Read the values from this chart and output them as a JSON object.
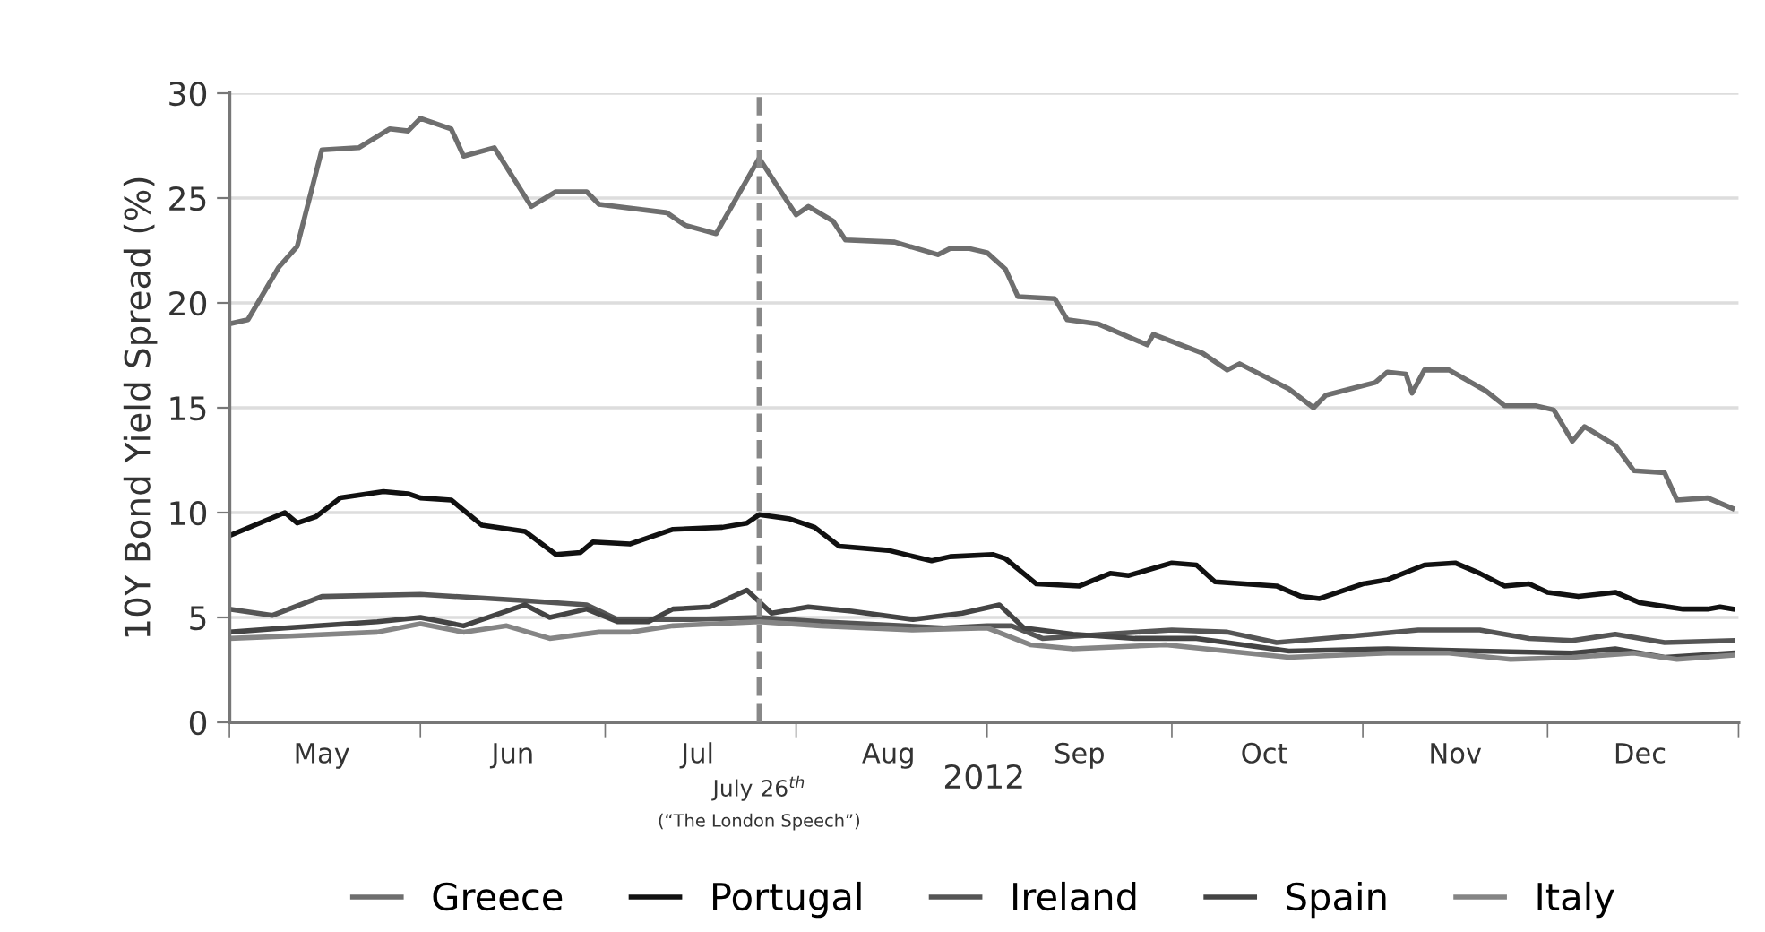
{
  "chart_data": {
    "type": "line",
    "ylabel": "10Y Bond Yield Spread (%)",
    "xlabel": "2012",
    "xlim": [
      "2012-05-01",
      "2013-01-01"
    ],
    "xticks": [
      {
        "value": "2012-05-01",
        "label": null
      },
      {
        "value": "2012-06-01",
        "label": null
      },
      {
        "value": "2012-07-01",
        "label": null
      },
      {
        "value": "2012-08-01",
        "label": null
      },
      {
        "value": "2012-09-01",
        "label": null
      },
      {
        "value": "2012-10-01",
        "label": null
      },
      {
        "value": "2012-11-01",
        "label": null
      },
      {
        "value": "2012-12-01",
        "label": null
      },
      {
        "value": "2013-01-01",
        "label": null
      },
      {
        "value": "2012-05-16",
        "label": "May"
      },
      {
        "value": "2012-06-16",
        "label": "Jun"
      },
      {
        "value": "2012-07-16",
        "label": "Jul"
      },
      {
        "value": "2012-08-16",
        "label": "Aug"
      },
      {
        "value": "2012-09-16",
        "label": "Sep"
      },
      {
        "value": "2012-10-16",
        "label": "Oct"
      },
      {
        "value": "2012-11-16",
        "label": "Nov"
      },
      {
        "value": "2012-12-16",
        "label": "Dec"
      }
    ],
    "ylim": [
      0,
      30
    ],
    "yticks": [
      0,
      5,
      10,
      15,
      20,
      25,
      30
    ],
    "grid": "y",
    "legend": "bottom",
    "line_style": "solid",
    "ref_lines": [
      {
        "axis": "x",
        "value": "2012-07-26",
        "label": "July 26$^{th}$",
        "color": "#888888",
        "line_style": "dashed"
      }
    ],
    "annotations": [
      "(“The London Speech”)"
    ],
    "series": [
      {
        "name": "Greece",
        "color": "#6e6e6e",
        "x": [
          "2012-05-01",
          "2012-05-04",
          "2012-05-09",
          "2012-05-12",
          "2012-05-16",
          "2012-05-22",
          "2012-05-27",
          "2012-05-30",
          "2012-06-01",
          "2012-06-06",
          "2012-06-08",
          "2012-06-13",
          "2012-06-19",
          "2012-06-23",
          "2012-06-28",
          "2012-06-30",
          "2012-07-11",
          "2012-07-14",
          "2012-07-19",
          "2012-07-26",
          "2012-07-30",
          "2012-08-01",
          "2012-08-03",
          "2012-08-07",
          "2012-08-09",
          "2012-08-17",
          "2012-08-24",
          "2012-08-26",
          "2012-08-29",
          "2012-09-01",
          "2012-09-04",
          "2012-09-06",
          "2012-09-12",
          "2012-09-14",
          "2012-09-19",
          "2012-09-27",
          "2012-09-28",
          "2012-10-06",
          "2012-10-10",
          "2012-10-12",
          "2012-10-20",
          "2012-10-24",
          "2012-10-26",
          "2012-11-03",
          "2012-11-05",
          "2012-11-08",
          "2012-11-09",
          "2012-11-11",
          "2012-11-15",
          "2012-11-21",
          "2012-11-24",
          "2012-11-29",
          "2012-12-02",
          "2012-12-05",
          "2012-12-07",
          "2012-12-12",
          "2012-12-15",
          "2012-12-20",
          "2012-12-22",
          "2012-12-27",
          "2012-12-31"
        ],
        "values": [
          19.0,
          19.2,
          21.7,
          22.7,
          27.3,
          27.4,
          28.3,
          28.2,
          28.8,
          28.3,
          27.0,
          27.4,
          24.6,
          25.3,
          25.3,
          24.7,
          24.3,
          23.7,
          23.3,
          26.9,
          25.1,
          24.2,
          24.6,
          23.9,
          23.0,
          22.9,
          22.3,
          22.6,
          22.6,
          22.4,
          21.6,
          20.3,
          20.2,
          19.2,
          19.0,
          18.0,
          18.5,
          17.6,
          16.8,
          17.1,
          15.9,
          15.0,
          15.6,
          16.2,
          16.7,
          16.6,
          15.7,
          16.8,
          16.8,
          15.8,
          15.1,
          15.1,
          14.9,
          13.4,
          14.1,
          13.2,
          12.0,
          11.9,
          10.6,
          10.7,
          10.2
        ]
      },
      {
        "name": "Portugal",
        "color": "#111111",
        "x": [
          "2012-05-01",
          "2012-05-10",
          "2012-05-12",
          "2012-05-15",
          "2012-05-19",
          "2012-05-26",
          "2012-05-30",
          "2012-06-01",
          "2012-06-06",
          "2012-06-11",
          "2012-06-18",
          "2012-06-23",
          "2012-06-27",
          "2012-06-29",
          "2012-07-05",
          "2012-07-12",
          "2012-07-20",
          "2012-07-24",
          "2012-07-26",
          "2012-07-31",
          "2012-08-04",
          "2012-08-08",
          "2012-08-16",
          "2012-08-23",
          "2012-08-26",
          "2012-09-02",
          "2012-09-04",
          "2012-09-09",
          "2012-09-16",
          "2012-09-21",
          "2012-09-24",
          "2012-10-01",
          "2012-10-05",
          "2012-10-08",
          "2012-10-18",
          "2012-10-22",
          "2012-10-25",
          "2012-11-01",
          "2012-11-05",
          "2012-11-11",
          "2012-11-16",
          "2012-11-20",
          "2012-11-24",
          "2012-11-28",
          "2012-12-01",
          "2012-12-06",
          "2012-12-12",
          "2012-12-16",
          "2012-12-23",
          "2012-12-27",
          "2012-12-29",
          "2012-12-31"
        ],
        "values": [
          8.9,
          10.0,
          9.5,
          9.8,
          10.7,
          11.0,
          10.9,
          10.7,
          10.6,
          9.4,
          9.1,
          8.0,
          8.1,
          8.6,
          8.5,
          9.2,
          9.3,
          9.5,
          9.9,
          9.7,
          9.3,
          8.4,
          8.2,
          7.7,
          7.9,
          8.0,
          7.8,
          6.6,
          6.5,
          7.1,
          7.0,
          7.6,
          7.5,
          6.7,
          6.5,
          6.0,
          5.9,
          6.6,
          6.8,
          7.5,
          7.6,
          7.1,
          6.5,
          6.6,
          6.2,
          6.0,
          6.2,
          5.7,
          5.4,
          5.4,
          5.5,
          5.4
        ]
      },
      {
        "name": "Ireland",
        "color": "#555555",
        "x": [
          "2012-05-01",
          "2012-05-08",
          "2012-05-16",
          "2012-06-01",
          "2012-06-18",
          "2012-06-28",
          "2012-07-03",
          "2012-07-15",
          "2012-07-26",
          "2012-08-05",
          "2012-08-25",
          "2012-09-01",
          "2012-09-05",
          "2012-09-10",
          "2012-09-20",
          "2012-10-01",
          "2012-10-10",
          "2012-10-18",
          "2012-10-30",
          "2012-11-10",
          "2012-11-20",
          "2012-11-28",
          "2012-12-05",
          "2012-12-12",
          "2012-12-20",
          "2012-12-31"
        ],
        "values": [
          5.4,
          5.1,
          6.0,
          6.1,
          5.8,
          5.6,
          4.9,
          4.9,
          5.0,
          4.8,
          4.5,
          4.6,
          4.6,
          4.0,
          4.2,
          4.4,
          4.3,
          3.8,
          4.1,
          4.4,
          4.4,
          4.0,
          3.9,
          4.2,
          3.8,
          3.9
        ]
      },
      {
        "name": "Spain",
        "color": "#444444",
        "x": [
          "2012-05-01",
          "2012-05-10",
          "2012-05-25",
          "2012-06-01",
          "2012-06-08",
          "2012-06-18",
          "2012-06-22",
          "2012-06-28",
          "2012-07-03",
          "2012-07-08",
          "2012-07-12",
          "2012-07-18",
          "2012-07-24",
          "2012-07-28",
          "2012-08-03",
          "2012-08-10",
          "2012-08-20",
          "2012-08-28",
          "2012-09-03",
          "2012-09-07",
          "2012-09-15",
          "2012-09-25",
          "2012-10-05",
          "2012-10-20",
          "2012-11-05",
          "2012-11-20",
          "2012-12-05",
          "2012-12-12",
          "2012-12-20",
          "2012-12-31"
        ],
        "values": [
          4.3,
          4.5,
          4.8,
          5.0,
          4.6,
          5.6,
          5.0,
          5.4,
          4.8,
          4.8,
          5.4,
          5.5,
          6.3,
          5.2,
          5.5,
          5.3,
          4.9,
          5.2,
          5.6,
          4.5,
          4.2,
          4.0,
          4.0,
          3.4,
          3.5,
          3.4,
          3.3,
          3.5,
          3.1,
          3.3
        ]
      },
      {
        "name": "Italy",
        "color": "#858585",
        "x": [
          "2012-05-01",
          "2012-05-10",
          "2012-05-25",
          "2012-06-01",
          "2012-06-08",
          "2012-06-15",
          "2012-06-22",
          "2012-06-30",
          "2012-07-05",
          "2012-07-12",
          "2012-07-26",
          "2012-08-05",
          "2012-08-20",
          "2012-09-01",
          "2012-09-08",
          "2012-09-15",
          "2012-09-30",
          "2012-10-10",
          "2012-10-20",
          "2012-11-05",
          "2012-11-15",
          "2012-11-25",
          "2012-12-05",
          "2012-12-15",
          "2012-12-22",
          "2012-12-31"
        ],
        "values": [
          4.0,
          4.1,
          4.3,
          4.7,
          4.3,
          4.6,
          4.0,
          4.3,
          4.3,
          4.6,
          4.8,
          4.6,
          4.4,
          4.5,
          3.7,
          3.5,
          3.7,
          3.4,
          3.1,
          3.3,
          3.3,
          3.0,
          3.1,
          3.3,
          3.0,
          3.2
        ]
      }
    ]
  }
}
